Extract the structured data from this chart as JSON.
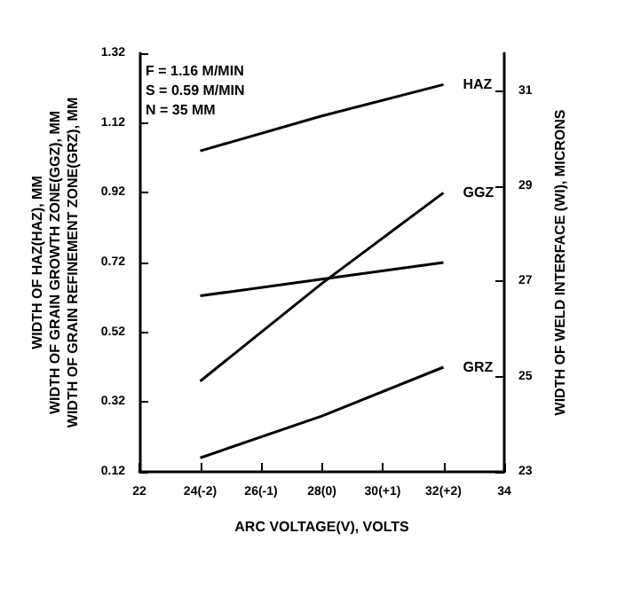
{
  "chart_data": {
    "type": "line",
    "xlabel": "ARC VOLTAGE(V), VOLTS",
    "ylabel": "WIDTH OF HAZ(HAZ), MM\nWIDTH OF GRAIN GROWTH ZONE(GGZ), MM\nWIDTH OF GRAIN REFINEMENT ZONE(GRZ), MM",
    "y2label": "WIDTH OF WELD INTERFACE (WI), MICRONS",
    "x": [
      24,
      28,
      32
    ],
    "series": [
      {
        "name": "HAZ",
        "color": "#000000",
        "values": [
          1.04,
          1.14,
          1.23
        ]
      },
      {
        "name": "GGZ",
        "color": "#000000",
        "values": [
          0.38,
          0.66,
          0.92
        ]
      },
      {
        "name": "GRZ",
        "color": "#000000",
        "values": [
          0.16,
          0.28,
          0.42
        ]
      },
      {
        "color": "#000000",
        "axis": "y2",
        "values": [
          26.7,
          27.05,
          27.4
        ]
      }
    ],
    "xlim": [
      22,
      34
    ],
    "xticks": [
      22,
      {
        "value": 24,
        "label": "24(-2)"
      },
      {
        "value": 26,
        "label": "26(-1)"
      },
      {
        "value": 28,
        "label": "28(0)"
      },
      {
        "value": 30,
        "label": "30(+1)"
      },
      {
        "value": 32,
        "label": "32(+2)"
      },
      34
    ],
    "ylim": [
      0.12,
      1.32
    ],
    "yticks": [
      0.12,
      0.32,
      0.52,
      0.72,
      0.92,
      1.12,
      1.32
    ],
    "y2lim": [
      23,
      31.8
    ],
    "y2ticks": [
      23,
      25,
      27,
      29,
      31
    ],
    "annotations": [
      "F = 1.16 M/MIN",
      "S = 0.59 M/MIN",
      "N = 35 MM"
    ],
    "grid": false,
    "legend": false,
    "marker": "none",
    "line_style": "solid"
  }
}
